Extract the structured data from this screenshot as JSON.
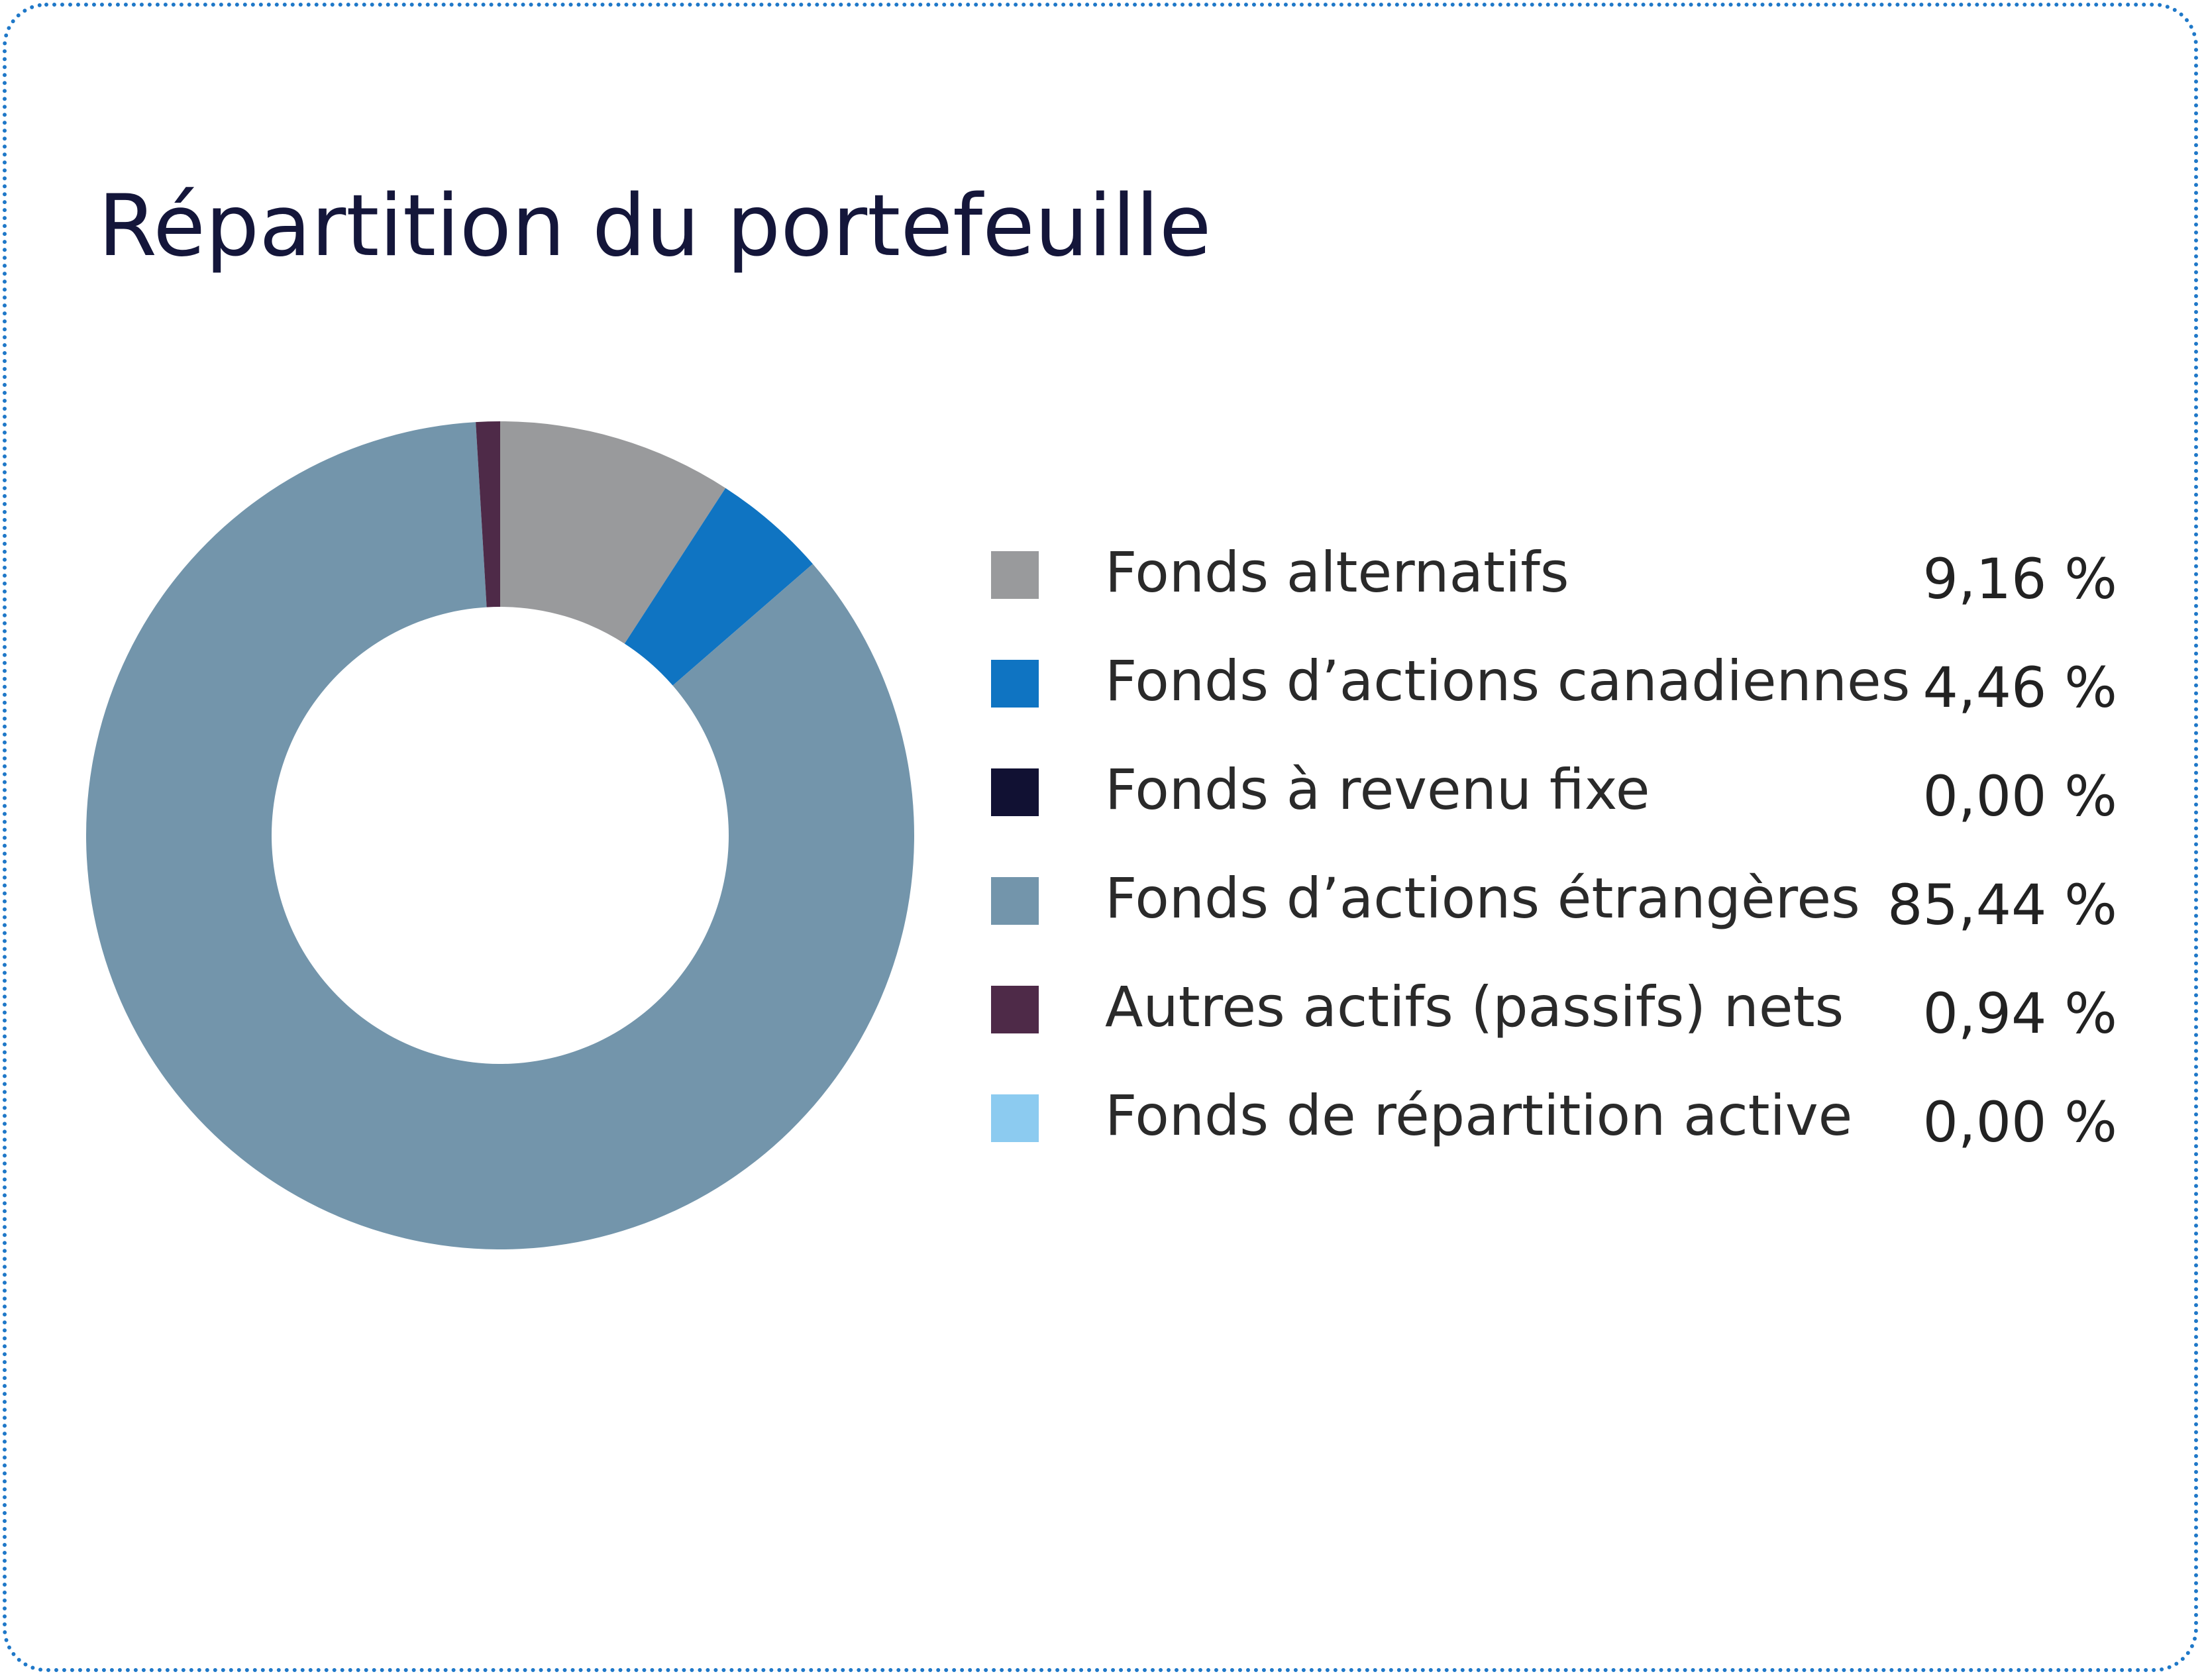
{
  "chart_data": {
    "type": "pie",
    "title": "Répartition du portefeuille",
    "legend_position": "right",
    "categories": [
      "Fonds alternatifs",
      "Fonds d’actions canadiennes",
      "Fonds à revenu fixe",
      "Fonds d’actions étrangères",
      "Autres actifs (passifs) nets",
      "Fonds de répartition active"
    ],
    "values": [
      9.16,
      4.46,
      0.0,
      85.44,
      0.94,
      0.0
    ],
    "value_labels": [
      "9,16 %",
      "4,46 %",
      "0,00 %",
      "85,44 %",
      "0,94 %",
      "0,00 %"
    ],
    "colors": [
      "#999a9c",
      "#0f74c2",
      "#111133",
      "#7395ab",
      "#4e2a48",
      "#8ccbf0"
    ]
  }
}
